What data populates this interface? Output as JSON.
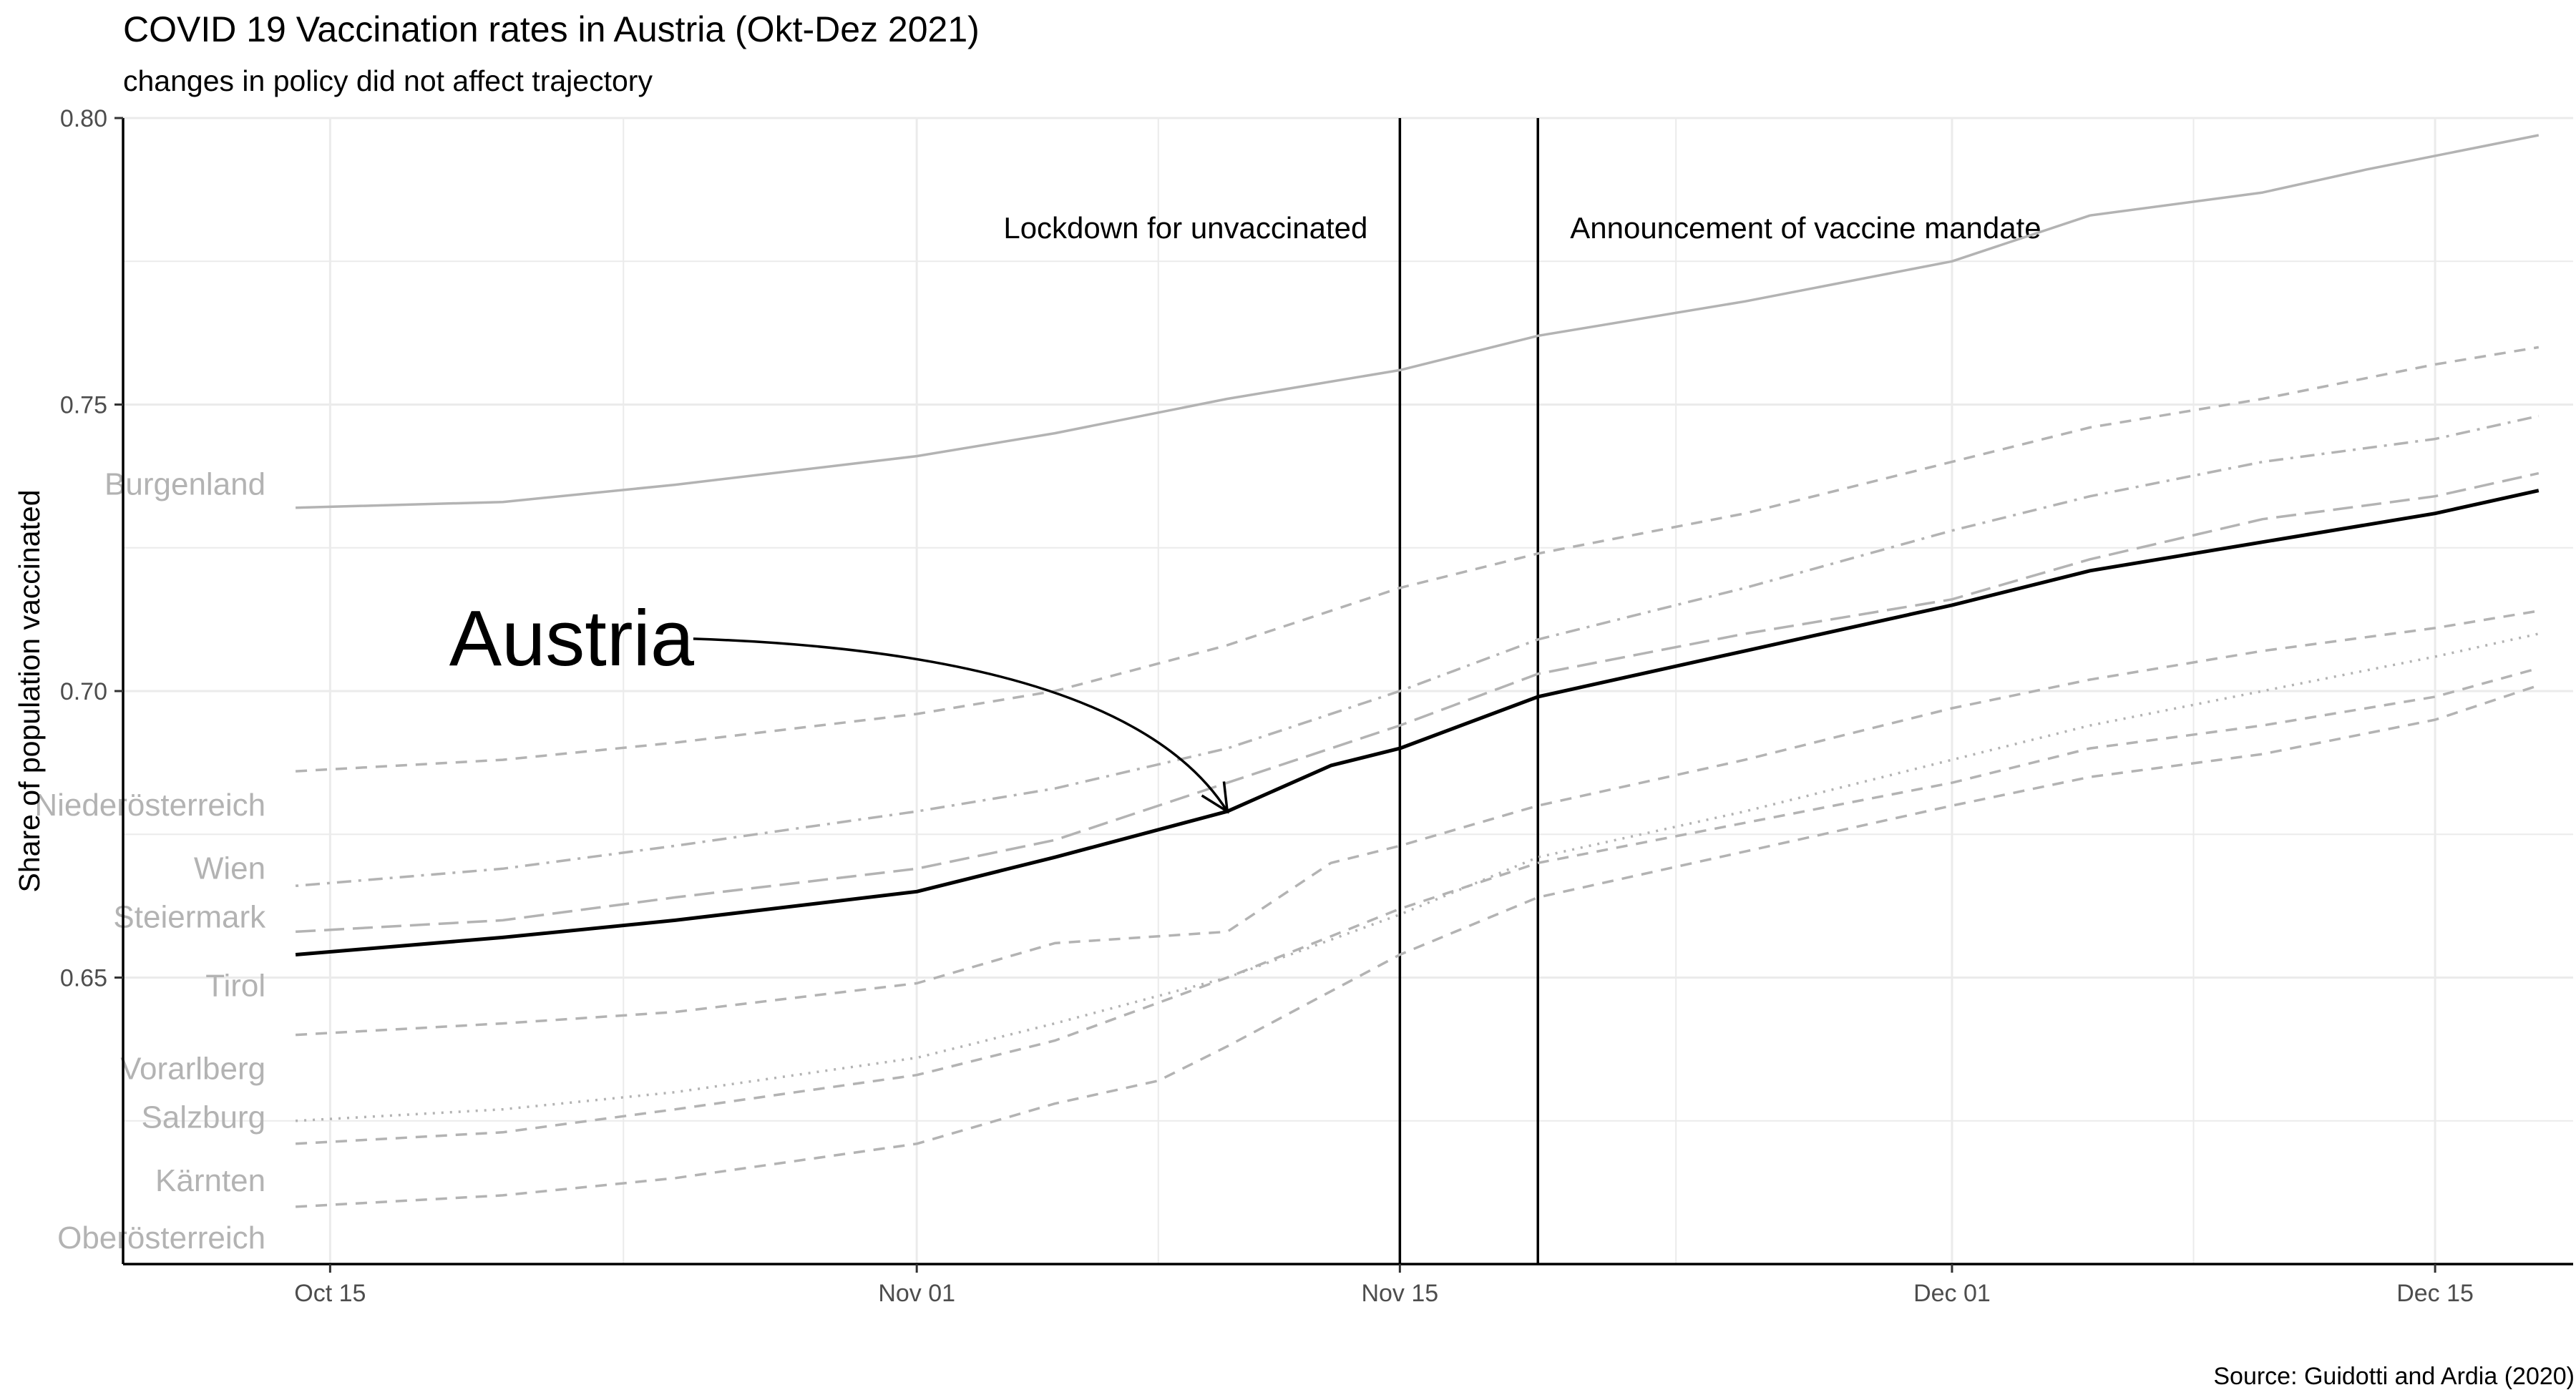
{
  "title": "COVID 19 Vaccination rates in Austria (Okt-Dez 2021)",
  "subtitle": "changes in policy did not affect trajectory",
  "source": "Source: Guidotti and Ardia (2020)",
  "colors": {
    "austria": "#000000",
    "regions": "#b3b3b3",
    "grid": "#ebebeb",
    "axis": "#000000"
  },
  "chart_data": {
    "type": "line",
    "title": "COVID 19 Vaccination rates in Austria (Okt-Dez 2021)",
    "subtitle": "changes in policy did not affect trajectory",
    "xlabel": "",
    "ylabel": "Share of population vaccinated",
    "xlim": [
      "2021-10-09",
      "2021-12-19"
    ],
    "ylim": [
      0.6,
      0.8
    ],
    "x_ticks": [
      "2021-10-15",
      "2021-11-01",
      "2021-11-15",
      "2021-12-01",
      "2021-12-15"
    ],
    "x_tick_labels": [
      "Oct 15",
      "Nov 01",
      "Nov 15",
      "Dec 01",
      "Dec 15"
    ],
    "y_ticks": [
      0.65,
      0.7,
      0.75,
      0.8
    ],
    "y_tick_labels": [
      "0.65",
      "0.70",
      "0.75",
      "0.80"
    ],
    "grid": true,
    "legend": "none",
    "date_range": [
      "2021-10-14",
      "2021-12-18"
    ],
    "series": [
      {
        "name": "Burgenland",
        "line_style": "solid",
        "color": "#b3b3b3",
        "points": [
          [
            "2021-10-14",
            0.732
          ],
          [
            "2021-10-20",
            0.733
          ],
          [
            "2021-10-25",
            0.736
          ],
          [
            "2021-11-01",
            0.741
          ],
          [
            "2021-11-05",
            0.745
          ],
          [
            "2021-11-10",
            0.751
          ],
          [
            "2021-11-15",
            0.756
          ],
          [
            "2021-11-19",
            0.762
          ],
          [
            "2021-11-25",
            0.768
          ],
          [
            "2021-12-01",
            0.775
          ],
          [
            "2021-12-05",
            0.783
          ],
          [
            "2021-12-10",
            0.787
          ],
          [
            "2021-12-13",
            0.791
          ],
          [
            "2021-12-18",
            0.797
          ]
        ]
      },
      {
        "name": "Niederösterreich",
        "line_style": "dashed",
        "color": "#b3b3b3",
        "points": [
          [
            "2021-10-14",
            0.686
          ],
          [
            "2021-10-20",
            0.688
          ],
          [
            "2021-10-25",
            0.691
          ],
          [
            "2021-11-01",
            0.696
          ],
          [
            "2021-11-05",
            0.7
          ],
          [
            "2021-11-10",
            0.708
          ],
          [
            "2021-11-15",
            0.718
          ],
          [
            "2021-11-19",
            0.724
          ],
          [
            "2021-11-25",
            0.731
          ],
          [
            "2021-12-01",
            0.74
          ],
          [
            "2021-12-05",
            0.746
          ],
          [
            "2021-12-10",
            0.751
          ],
          [
            "2021-12-15",
            0.757
          ],
          [
            "2021-12-18",
            0.76
          ]
        ]
      },
      {
        "name": "Wien",
        "line_style": "dotdash",
        "color": "#b3b3b3",
        "points": [
          [
            "2021-10-14",
            0.666
          ],
          [
            "2021-10-20",
            0.669
          ],
          [
            "2021-10-25",
            0.673
          ],
          [
            "2021-11-01",
            0.679
          ],
          [
            "2021-11-05",
            0.683
          ],
          [
            "2021-11-10",
            0.69
          ],
          [
            "2021-11-15",
            0.7
          ],
          [
            "2021-11-19",
            0.709
          ],
          [
            "2021-11-25",
            0.718
          ],
          [
            "2021-12-01",
            0.728
          ],
          [
            "2021-12-05",
            0.734
          ],
          [
            "2021-12-10",
            0.74
          ],
          [
            "2021-12-15",
            0.744
          ],
          [
            "2021-12-18",
            0.748
          ]
        ]
      },
      {
        "name": "Steiermark",
        "line_style": "longdash",
        "color": "#b3b3b3",
        "points": [
          [
            "2021-10-14",
            0.658
          ],
          [
            "2021-10-20",
            0.66
          ],
          [
            "2021-10-25",
            0.664
          ],
          [
            "2021-11-01",
            0.669
          ],
          [
            "2021-11-05",
            0.674
          ],
          [
            "2021-11-10",
            0.684
          ],
          [
            "2021-11-15",
            0.694
          ],
          [
            "2021-11-19",
            0.703
          ],
          [
            "2021-11-25",
            0.71
          ],
          [
            "2021-12-01",
            0.716
          ],
          [
            "2021-12-05",
            0.723
          ],
          [
            "2021-12-10",
            0.73
          ],
          [
            "2021-12-15",
            0.734
          ],
          [
            "2021-12-18",
            0.738
          ]
        ]
      },
      {
        "name": "Tirol",
        "line_style": "dashed",
        "color": "#b3b3b3",
        "points": [
          [
            "2021-10-14",
            0.64
          ],
          [
            "2021-10-20",
            0.642
          ],
          [
            "2021-10-25",
            0.644
          ],
          [
            "2021-11-01",
            0.649
          ],
          [
            "2021-11-05",
            0.656
          ],
          [
            "2021-11-10",
            0.658
          ],
          [
            "2021-11-13",
            0.67
          ],
          [
            "2021-11-15",
            0.673
          ],
          [
            "2021-11-19",
            0.68
          ],
          [
            "2021-11-25",
            0.688
          ],
          [
            "2021-12-01",
            0.697
          ],
          [
            "2021-12-05",
            0.702
          ],
          [
            "2021-12-10",
            0.707
          ],
          [
            "2021-12-15",
            0.711
          ],
          [
            "2021-12-18",
            0.714
          ]
        ]
      },
      {
        "name": "Vorarlberg",
        "line_style": "dotted",
        "color": "#b3b3b3",
        "points": [
          [
            "2021-10-14",
            0.625
          ],
          [
            "2021-10-20",
            0.627
          ],
          [
            "2021-10-25",
            0.63
          ],
          [
            "2021-11-01",
            0.636
          ],
          [
            "2021-11-05",
            0.642
          ],
          [
            "2021-11-10",
            0.65
          ],
          [
            "2021-11-15",
            0.661
          ],
          [
            "2021-11-19",
            0.671
          ],
          [
            "2021-11-25",
            0.679
          ],
          [
            "2021-12-01",
            0.688
          ],
          [
            "2021-12-05",
            0.694
          ],
          [
            "2021-12-10",
            0.7
          ],
          [
            "2021-12-15",
            0.706
          ],
          [
            "2021-12-18",
            0.71
          ]
        ]
      },
      {
        "name": "Salzburg",
        "line_style": "dashed",
        "color": "#b3b3b3",
        "points": [
          [
            "2021-10-14",
            0.621
          ],
          [
            "2021-10-20",
            0.623
          ],
          [
            "2021-10-25",
            0.627
          ],
          [
            "2021-11-01",
            0.633
          ],
          [
            "2021-11-05",
            0.639
          ],
          [
            "2021-11-10",
            0.65
          ],
          [
            "2021-11-15",
            0.662
          ],
          [
            "2021-11-19",
            0.67
          ],
          [
            "2021-11-25",
            0.677
          ],
          [
            "2021-12-01",
            0.684
          ],
          [
            "2021-12-05",
            0.69
          ],
          [
            "2021-12-10",
            0.694
          ],
          [
            "2021-12-15",
            0.699
          ],
          [
            "2021-12-18",
            0.704
          ]
        ]
      },
      {
        "name": "Kärnten",
        "line_style": "dashed",
        "color": "#b3b3b3",
        "points": [
          [
            "2021-10-14",
            0.61
          ],
          [
            "2021-10-20",
            0.612
          ],
          [
            "2021-10-25",
            0.615
          ],
          [
            "2021-11-01",
            0.621
          ],
          [
            "2021-11-05",
            0.628
          ],
          [
            "2021-11-08",
            0.632
          ],
          [
            "2021-11-10",
            0.638
          ],
          [
            "2021-11-15",
            0.654
          ],
          [
            "2021-11-19",
            0.664
          ],
          [
            "2021-11-25",
            0.672
          ],
          [
            "2021-12-01",
            0.68
          ],
          [
            "2021-12-05",
            0.685
          ],
          [
            "2021-12-10",
            0.689
          ],
          [
            "2021-12-15",
            0.695
          ],
          [
            "2021-12-18",
            0.701
          ]
        ]
      },
      {
        "name": "Austria",
        "line_style": "solid",
        "color": "#000000",
        "highlight": true,
        "points": [
          [
            "2021-10-14",
            0.654
          ],
          [
            "2021-10-20",
            0.657
          ],
          [
            "2021-10-25",
            0.66
          ],
          [
            "2021-11-01",
            0.665
          ],
          [
            "2021-11-05",
            0.671
          ],
          [
            "2021-11-10",
            0.679
          ],
          [
            "2021-11-13",
            0.687
          ],
          [
            "2021-11-15",
            0.69
          ],
          [
            "2021-11-19",
            0.699
          ],
          [
            "2021-11-25",
            0.707
          ],
          [
            "2021-12-01",
            0.715
          ],
          [
            "2021-12-05",
            0.721
          ],
          [
            "2021-12-10",
            0.726
          ],
          [
            "2021-12-15",
            0.731
          ],
          [
            "2021-12-18",
            0.735
          ]
        ]
      }
    ],
    "region_labels": [
      {
        "text": "Burgenland",
        "y": 0.736
      },
      {
        "text": "Niederösterreich",
        "y": 0.68
      },
      {
        "text": "Wien",
        "y": 0.669
      },
      {
        "text": "Steiermark",
        "y": 0.6605
      },
      {
        "text": "Tirol",
        "y": 0.6485
      },
      {
        "text": "Vorarlberg",
        "y": 0.634
      },
      {
        "text": "Salzburg",
        "y": 0.6255
      },
      {
        "text": "Kärnten",
        "y": 0.6145
      },
      {
        "text": "Oberösterreich",
        "y": 0.6045
      }
    ],
    "vlines": [
      {
        "date": "2021-11-15",
        "label": "Lockdown for unvaccinated",
        "label_side": "left",
        "label_y": 0.779
      },
      {
        "date": "2021-11-19",
        "label": "Announcement of vaccine mandate",
        "label_side": "right",
        "label_y": 0.779
      }
    ],
    "callout": {
      "text": "Austria",
      "text_date": "2021-10-22",
      "text_y": 0.7095,
      "arrow_to_date": "2021-11-10",
      "arrow_to_y": 0.679
    }
  }
}
